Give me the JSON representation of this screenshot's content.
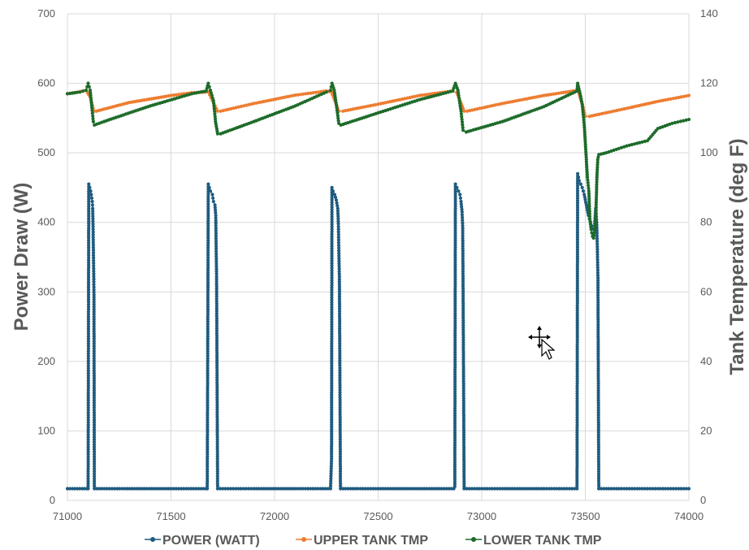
{
  "chart_data": {
    "type": "scatter",
    "title": "",
    "xlabel": "",
    "ylabel": "Power Draw (W)",
    "y2label": "Tank Temperature (deg F)",
    "xlim": [
      71000,
      74000
    ],
    "ylim": [
      0,
      700
    ],
    "y2lim": [
      0,
      140
    ],
    "x_ticks": [
      "71000",
      "71500",
      "72000",
      "72500",
      "73000",
      "73500",
      "74000"
    ],
    "y_ticks": [
      "0",
      "100",
      "200",
      "300",
      "400",
      "500",
      "600",
      "700"
    ],
    "y2_ticks": [
      "0",
      "20",
      "40",
      "60",
      "80",
      "100",
      "120",
      "140"
    ],
    "grid": true,
    "legend_position": "bottom",
    "series": [
      {
        "name": "POWER (WATT)",
        "axis": "left",
        "color": "#1f5b7f",
        "points": [
          [
            71000,
            17
          ],
          [
            71095,
            17
          ],
          [
            71100,
            17
          ],
          [
            71103,
            455
          ],
          [
            71108,
            450
          ],
          [
            71112,
            445
          ],
          [
            71115,
            440
          ],
          [
            71120,
            430
          ],
          [
            71122,
            420
          ],
          [
            71124,
            390
          ],
          [
            71126,
            345
          ],
          [
            71128,
            303
          ],
          [
            71130,
            17
          ],
          [
            71300,
            17
          ],
          [
            71500,
            17
          ],
          [
            71670,
            17
          ],
          [
            71675,
            17
          ],
          [
            71680,
            455
          ],
          [
            71685,
            450
          ],
          [
            71690,
            445
          ],
          [
            71700,
            440
          ],
          [
            71705,
            430
          ],
          [
            71712,
            425
          ],
          [
            71716,
            410
          ],
          [
            71718,
            362
          ],
          [
            71720,
            322
          ],
          [
            71725,
            17
          ],
          [
            71900,
            17
          ],
          [
            72100,
            17
          ],
          [
            72270,
            17
          ],
          [
            72275,
            60
          ],
          [
            72277,
            450
          ],
          [
            72282,
            445
          ],
          [
            72290,
            440
          ],
          [
            72298,
            432
          ],
          [
            72305,
            420
          ],
          [
            72308,
            398
          ],
          [
            72310,
            363
          ],
          [
            72313,
            318
          ],
          [
            72318,
            17
          ],
          [
            72500,
            17
          ],
          [
            72700,
            17
          ],
          [
            72865,
            17
          ],
          [
            72870,
            20
          ],
          [
            72873,
            455
          ],
          [
            72880,
            450
          ],
          [
            72888,
            445
          ],
          [
            72895,
            440
          ],
          [
            72900,
            430
          ],
          [
            72905,
            415
          ],
          [
            72908,
            395
          ],
          [
            72910,
            308
          ],
          [
            72915,
            17
          ],
          [
            73100,
            17
          ],
          [
            73300,
            17
          ],
          [
            73460,
            17
          ],
          [
            73463,
            470
          ],
          [
            73470,
            460
          ],
          [
            73478,
            455
          ],
          [
            73485,
            450
          ],
          [
            73495,
            440
          ],
          [
            73505,
            425
          ],
          [
            73515,
            410
          ],
          [
            73525,
            400
          ],
          [
            73530,
            395
          ],
          [
            73540,
            390
          ],
          [
            73545,
            395
          ],
          [
            73550,
            420
          ],
          [
            73555,
            400
          ],
          [
            73558,
            365
          ],
          [
            73561,
            320
          ],
          [
            73565,
            17
          ],
          [
            73700,
            17
          ],
          [
            73850,
            17
          ],
          [
            74000,
            17
          ]
        ]
      },
      {
        "name": "UPPER TANK TMP",
        "axis": "right",
        "color": "#ed7d31",
        "points": [
          [
            71000,
            117
          ],
          [
            71050,
            117.5
          ],
          [
            71090,
            118
          ],
          [
            71110,
            116
          ],
          [
            71128,
            112
          ],
          [
            71140,
            112
          ],
          [
            71300,
            114.5
          ],
          [
            71500,
            116.5
          ],
          [
            71600,
            117.3
          ],
          [
            71680,
            117.5
          ],
          [
            71700,
            115
          ],
          [
            71725,
            112
          ],
          [
            71740,
            112
          ],
          [
            71900,
            114.2
          ],
          [
            72100,
            116.6
          ],
          [
            72250,
            117.8
          ],
          [
            72275,
            117.5
          ],
          [
            72310,
            112
          ],
          [
            72330,
            112
          ],
          [
            72500,
            114
          ],
          [
            72700,
            116.5
          ],
          [
            72860,
            117.8
          ],
          [
            72880,
            117.3
          ],
          [
            72915,
            112
          ],
          [
            72930,
            112
          ],
          [
            73100,
            114.2
          ],
          [
            73300,
            116.5
          ],
          [
            73465,
            118
          ],
          [
            73490,
            113
          ],
          [
            73500,
            110.5
          ],
          [
            73520,
            110.5
          ],
          [
            73700,
            112.8
          ],
          [
            73850,
            114.8
          ],
          [
            74000,
            116.5
          ]
        ]
      },
      {
        "name": "LOWER TANK TMP",
        "axis": "right",
        "color": "#1e6b2a",
        "points": [
          [
            71000,
            117
          ],
          [
            71060,
            117.5
          ],
          [
            71090,
            118
          ],
          [
            71100,
            120
          ],
          [
            71110,
            118
          ],
          [
            71118,
            113
          ],
          [
            71125,
            109
          ],
          [
            71130,
            108
          ],
          [
            71200,
            109.5
          ],
          [
            71400,
            113.5
          ],
          [
            71600,
            117
          ],
          [
            71670,
            117.8
          ],
          [
            71680,
            120
          ],
          [
            71690,
            118
          ],
          [
            71705,
            115
          ],
          [
            71715,
            109
          ],
          [
            71725,
            105.5
          ],
          [
            71740,
            105.5
          ],
          [
            71900,
            109
          ],
          [
            72100,
            113.5
          ],
          [
            72250,
            117.5
          ],
          [
            72270,
            118
          ],
          [
            72277,
            120
          ],
          [
            72288,
            118
          ],
          [
            72300,
            113
          ],
          [
            72310,
            108.5
          ],
          [
            72320,
            108
          ],
          [
            72500,
            111.5
          ],
          [
            72700,
            115.3
          ],
          [
            72860,
            117.8
          ],
          [
            72873,
            120
          ],
          [
            72885,
            118
          ],
          [
            72900,
            112
          ],
          [
            72910,
            106.5
          ],
          [
            72925,
            106
          ],
          [
            73100,
            109
          ],
          [
            73300,
            113.3
          ],
          [
            73460,
            117.8
          ],
          [
            73463,
            120
          ],
          [
            73475,
            117
          ],
          [
            73485,
            114
          ],
          [
            73495,
            108
          ],
          [
            73502,
            101
          ],
          [
            73510,
            93
          ],
          [
            73517,
            89
          ],
          [
            73522,
            81
          ],
          [
            73528,
            78
          ],
          [
            73535,
            76
          ],
          [
            73540,
            75.5
          ],
          [
            73550,
            80
          ],
          [
            73556,
            93
          ],
          [
            73560,
            98
          ],
          [
            73565,
            99.5
          ],
          [
            73600,
            100
          ],
          [
            73700,
            102
          ],
          [
            73800,
            103.5
          ],
          [
            73850,
            107
          ],
          [
            73920,
            108.5
          ],
          [
            74000,
            109.6
          ]
        ]
      }
    ]
  }
}
